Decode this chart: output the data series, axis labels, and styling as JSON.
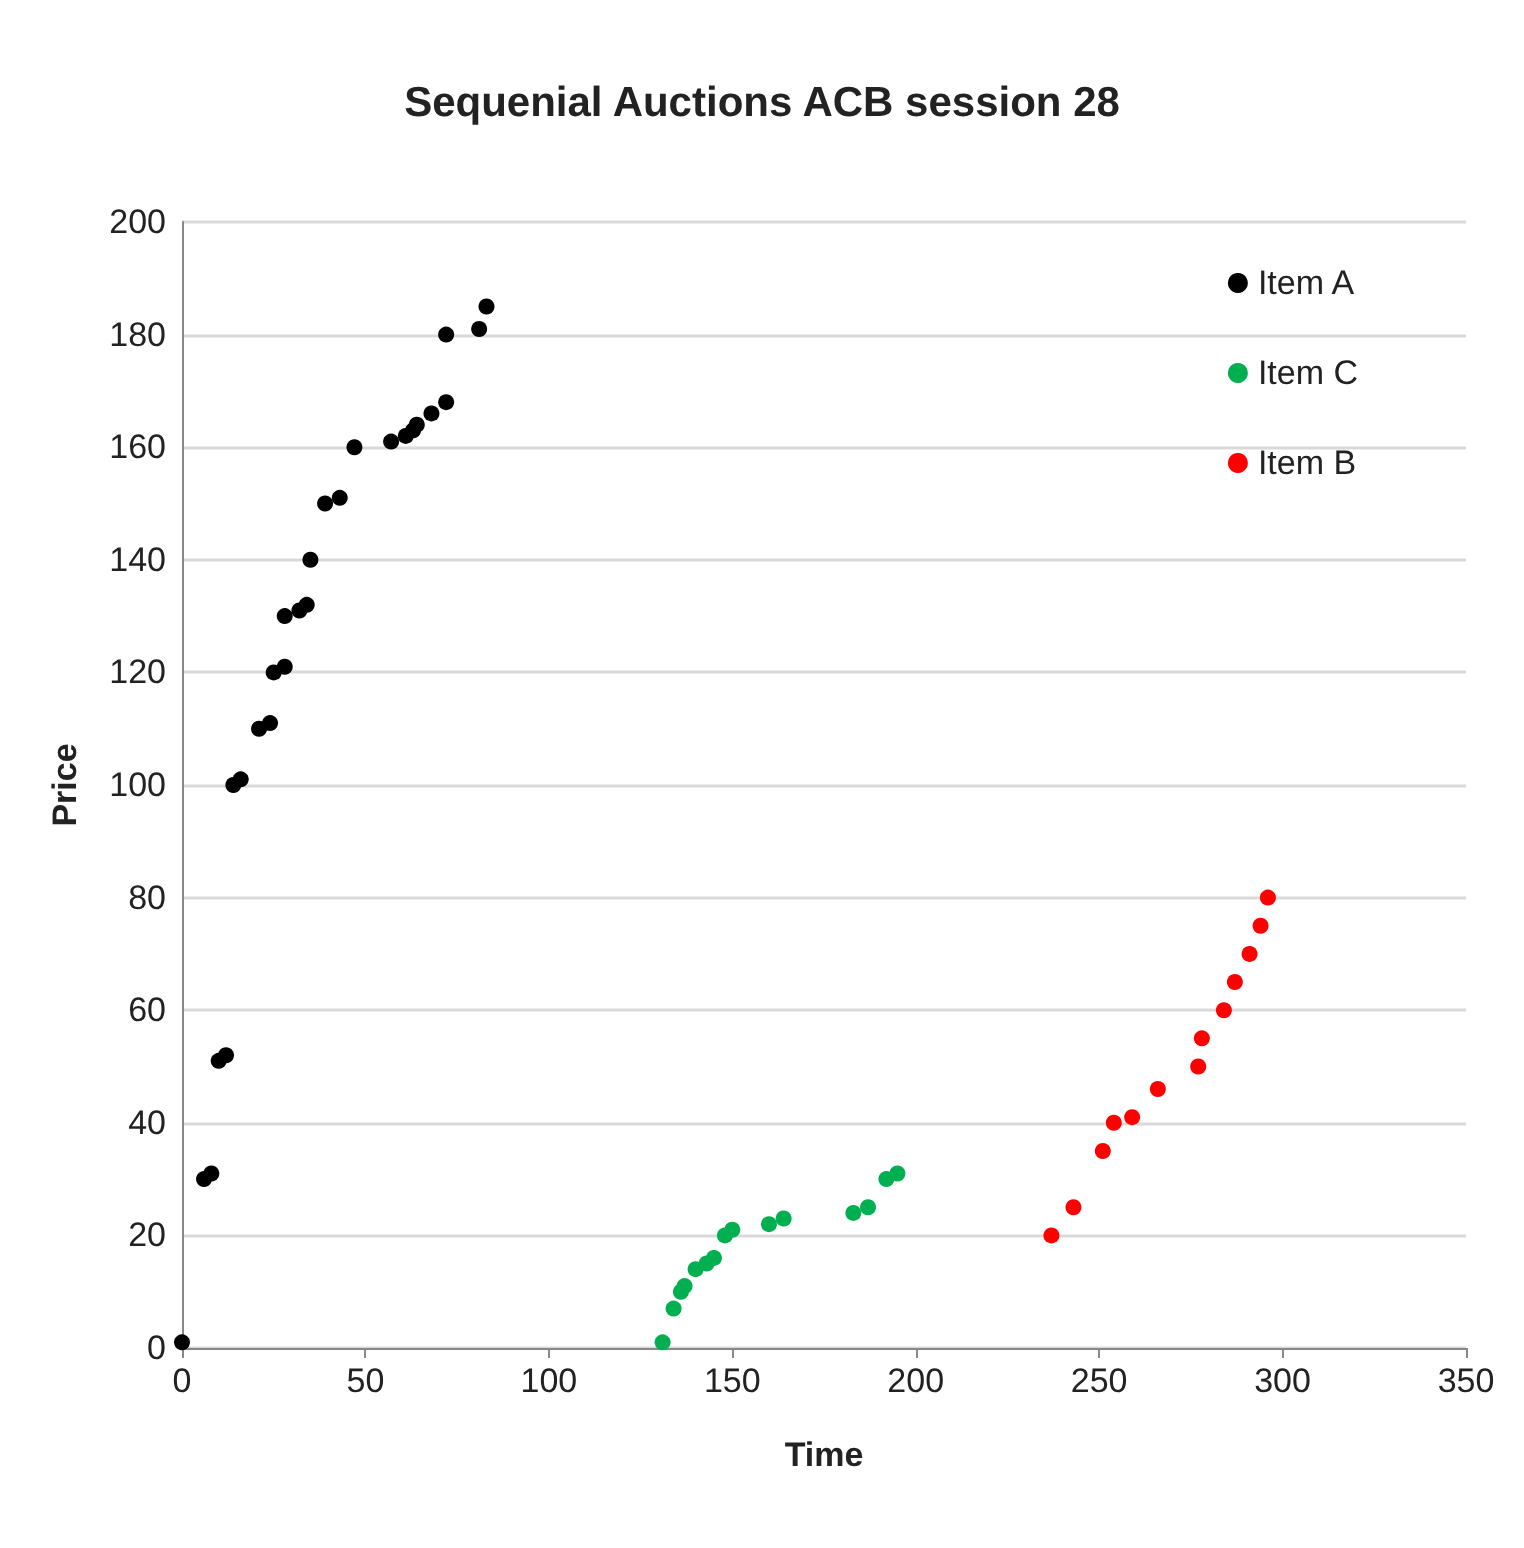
{
  "chart_data": {
    "type": "scatter",
    "title": "Sequenial Auctions ACB session 28",
    "xlabel": "Time",
    "ylabel": "Price",
    "xlim": [
      0,
      350
    ],
    "xticks": [
      0,
      50,
      100,
      150,
      200,
      250,
      300,
      350
    ],
    "ylim": [
      0,
      200
    ],
    "yticks": [
      0,
      20,
      40,
      60,
      80,
      100,
      120,
      140,
      160,
      180,
      200
    ],
    "grid": "y",
    "legend": "top right",
    "marker": "circle",
    "series": [
      {
        "name": "Item A",
        "color": "#000000",
        "x": [
          0,
          6,
          8,
          10,
          12,
          14,
          16,
          21,
          24,
          25,
          28,
          28,
          32,
          34,
          35,
          39,
          43,
          47,
          57,
          61,
          63,
          64,
          68,
          72,
          72,
          81,
          83
        ],
        "values": [
          1,
          30,
          31,
          51,
          52,
          100,
          101,
          110,
          111,
          120,
          121,
          130,
          131,
          132,
          140,
          150,
          151,
          160,
          161,
          162,
          163,
          164,
          166,
          168,
          180,
          181,
          185
        ]
      },
      {
        "name": "Item C",
        "color": "#00b050",
        "x": [
          131,
          134,
          136,
          137,
          140,
          143,
          145,
          148,
          150,
          160,
          164,
          183,
          187,
          192,
          195
        ],
        "values": [
          1,
          7,
          10,
          11,
          14,
          15,
          16,
          20,
          21,
          22,
          23,
          24,
          25,
          30,
          31
        ]
      },
      {
        "name": "Item B",
        "color": "#ff0000",
        "x": [
          237,
          243,
          251,
          254,
          259,
          266,
          277,
          278,
          284,
          287,
          291,
          294,
          296
        ],
        "values": [
          20,
          25,
          35,
          40,
          41,
          46,
          50,
          55,
          60,
          65,
          70,
          75,
          80
        ]
      }
    ]
  }
}
